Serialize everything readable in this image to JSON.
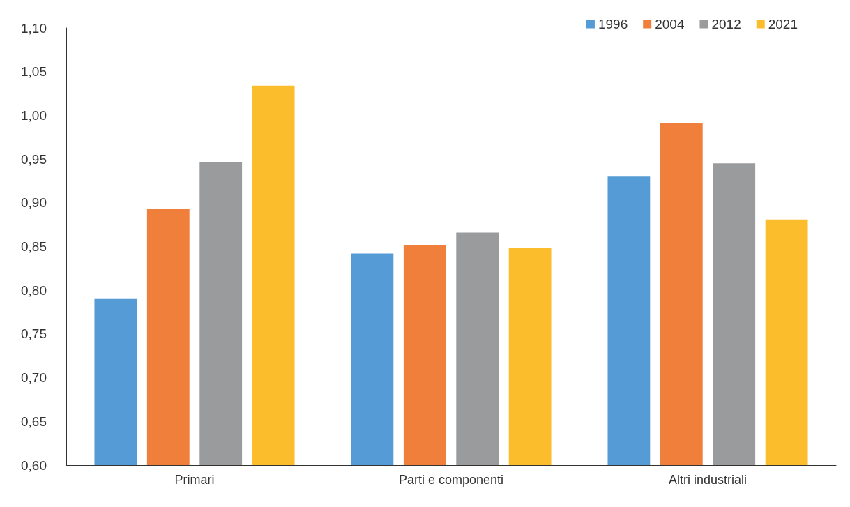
{
  "chart_data": {
    "type": "bar",
    "categories": [
      "Primari",
      "Parti e componenti",
      "Altri industriali"
    ],
    "series": [
      {
        "name": "1996",
        "color": "#559bd5",
        "values": [
          0.79,
          0.842,
          0.93
        ]
      },
      {
        "name": "2004",
        "color": "#f07f3b",
        "values": [
          0.893,
          0.852,
          0.991
        ]
      },
      {
        "name": "2012",
        "color": "#9a9b9d",
        "values": [
          0.946,
          0.866,
          0.945
        ]
      },
      {
        "name": "2021",
        "color": "#fbbd2c",
        "values": [
          1.034,
          0.848,
          0.881
        ]
      }
    ],
    "ylim": [
      0.6,
      1.1
    ],
    "yticks": [
      {
        "value": 0.6,
        "label": "0,60"
      },
      {
        "value": 0.65,
        "label": "0,65"
      },
      {
        "value": 0.7,
        "label": "0,70"
      },
      {
        "value": 0.75,
        "label": "0,75"
      },
      {
        "value": 0.8,
        "label": "0,80"
      },
      {
        "value": 0.85,
        "label": "0,85"
      },
      {
        "value": 0.9,
        "label": "0,90"
      },
      {
        "value": 0.95,
        "label": "0,95"
      },
      {
        "value": 1.0,
        "label": "1,00"
      },
      {
        "value": 1.05,
        "label": "1,05"
      },
      {
        "value": 1.1,
        "label": "1,10"
      }
    ],
    "grid": false,
    "legend": "top right"
  }
}
